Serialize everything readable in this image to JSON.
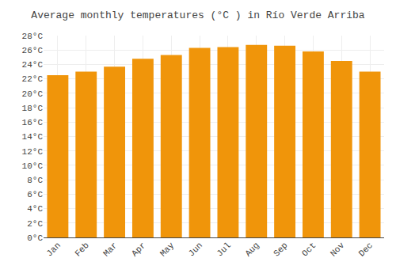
{
  "chart_data": {
    "type": "bar",
    "title": "Average monthly temperatures (°C ) in Río Verde Arriba",
    "categories": [
      "Jan",
      "Feb",
      "Mar",
      "Apr",
      "May",
      "Jun",
      "Jul",
      "Aug",
      "Sep",
      "Oct",
      "Nov",
      "Dec"
    ],
    "values": [
      22.5,
      23.0,
      23.7,
      24.8,
      25.3,
      26.3,
      26.4,
      26.7,
      26.6,
      25.8,
      24.5,
      23.0
    ],
    "color": "#F0950A",
    "ylim": [
      0,
      28
    ],
    "yticks": [
      {
        "value": 0,
        "label": "0°C"
      },
      {
        "value": 2,
        "label": "2°C"
      },
      {
        "value": 4,
        "label": "4°C"
      },
      {
        "value": 6,
        "label": "6°C"
      },
      {
        "value": 8,
        "label": "8°C"
      },
      {
        "value": 10,
        "label": "10°C"
      },
      {
        "value": 12,
        "label": "12°C"
      },
      {
        "value": 14,
        "label": "14°C"
      },
      {
        "value": 16,
        "label": "16°C"
      },
      {
        "value": 18,
        "label": "18°C"
      },
      {
        "value": 20,
        "label": "20°C"
      },
      {
        "value": 22,
        "label": "22°C"
      },
      {
        "value": 24,
        "label": "24°C"
      },
      {
        "value": 26,
        "label": "26°C"
      },
      {
        "value": 28,
        "label": "28°C"
      }
    ],
    "grid": true
  }
}
